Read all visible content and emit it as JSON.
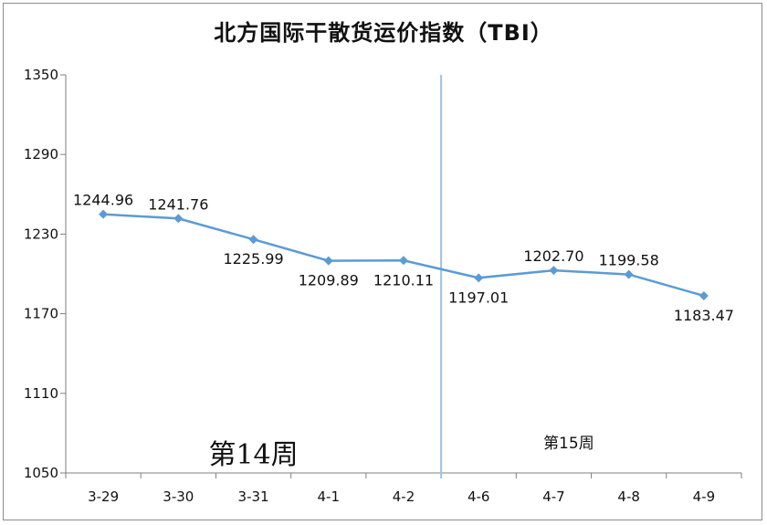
{
  "chart_data": {
    "type": "line",
    "title": "北方国际干散货运价指数（TBI）",
    "categories": [
      "3-29",
      "3-30",
      "3-31",
      "4-1",
      "4-2",
      "4-6",
      "4-7",
      "4-8",
      "4-9"
    ],
    "series": [
      {
        "values": [
          1244.96,
          1241.76,
          1225.99,
          1209.89,
          1210.11,
          1197.01,
          1202.7,
          1199.58,
          1183.47
        ]
      }
    ],
    "data_labels": [
      "1244.96",
      "1241.76",
      "1225.99",
      "1209.89",
      "1210.11",
      "1197.01",
      "1202.70",
      "1199.58",
      "1183.47"
    ],
    "ylim": [
      1050,
      1350
    ],
    "yticks": [
      1050,
      1110,
      1170,
      1230,
      1290,
      1350
    ],
    "week_divider_after_index": 4,
    "annotations": {
      "week14": "第14周",
      "week15": "第15周"
    },
    "grid": false,
    "legend": "none",
    "colors": {
      "line": "#5B9BD5",
      "divider": "#9DC3E6",
      "axis": "#7f7f7f"
    }
  }
}
